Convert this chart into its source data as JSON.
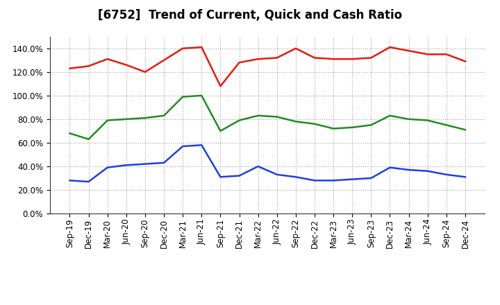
{
  "title": "[6752]  Trend of Current, Quick and Cash Ratio",
  "labels": [
    "Sep-19",
    "Dec-19",
    "Mar-20",
    "Jun-20",
    "Sep-20",
    "Dec-20",
    "Mar-21",
    "Jun-21",
    "Sep-21",
    "Dec-21",
    "Mar-22",
    "Jun-22",
    "Sep-22",
    "Dec-22",
    "Mar-23",
    "Jun-23",
    "Sep-23",
    "Dec-23",
    "Mar-24",
    "Jun-24",
    "Sep-24",
    "Dec-24"
  ],
  "current_ratio": [
    123,
    125,
    131,
    126,
    120,
    130,
    140,
    141,
    108,
    128,
    131,
    132,
    140,
    132,
    131,
    131,
    132,
    141,
    138,
    135,
    135,
    129
  ],
  "quick_ratio": [
    68,
    63,
    79,
    80,
    81,
    83,
    99,
    100,
    70,
    79,
    83,
    82,
    78,
    76,
    72,
    73,
    75,
    83,
    80,
    79,
    75,
    71
  ],
  "cash_ratio": [
    28,
    27,
    39,
    41,
    42,
    43,
    57,
    58,
    31,
    32,
    40,
    33,
    31,
    28,
    28,
    29,
    30,
    39,
    37,
    36,
    33,
    31
  ],
  "ylim": [
    0,
    150
  ],
  "yticks": [
    0,
    20,
    40,
    60,
    80,
    100,
    120,
    140
  ],
  "current_color": "#e8190c",
  "quick_color": "#1e8c1e",
  "cash_color": "#1e3de8",
  "bg_color": "#ffffff",
  "plot_bg_color": "#ffffff",
  "grid_color": "#a0a0a0",
  "linewidth": 1.8,
  "title_fontsize": 12,
  "tick_fontsize": 8.5,
  "legend_fontsize": 10
}
